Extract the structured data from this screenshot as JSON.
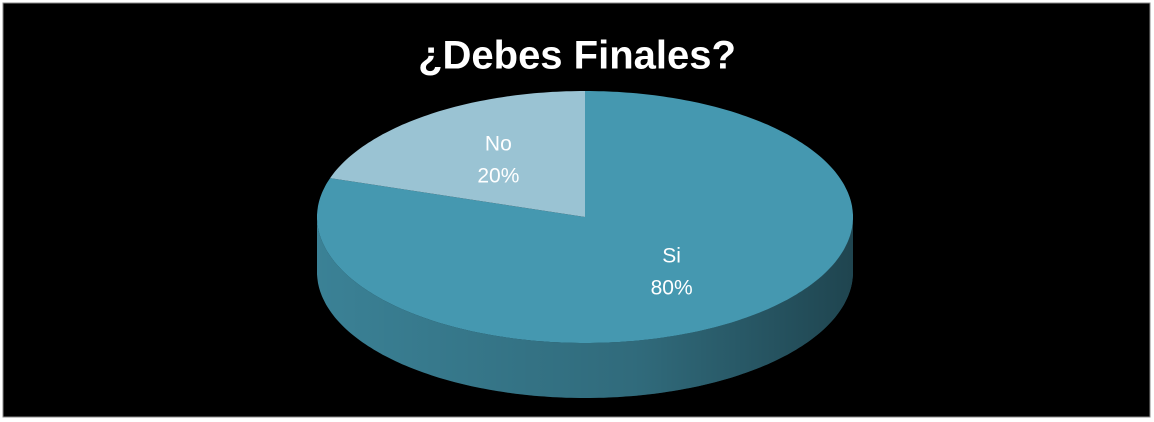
{
  "chart_data": {
    "type": "pie",
    "title": "¿Debes Finales?",
    "categories": [
      "Si",
      "No"
    ],
    "values": [
      80,
      20
    ],
    "value_labels": [
      "80%",
      "20%"
    ],
    "colors": [
      "#4598b0",
      "#9ac3d3"
    ]
  }
}
